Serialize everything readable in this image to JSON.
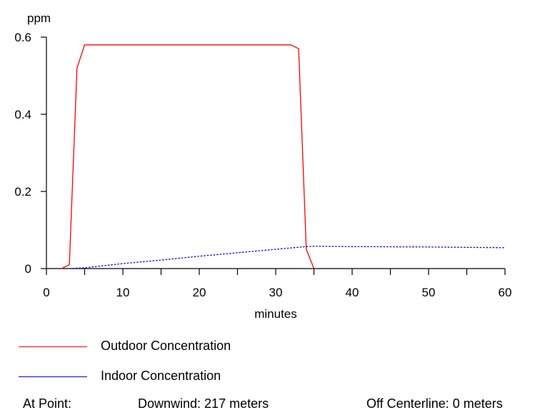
{
  "chart_data": {
    "type": "line",
    "ylabel": "ppm",
    "xlabel": "minutes",
    "xlim": [
      0,
      60
    ],
    "ylim": [
      0,
      0.6
    ],
    "x_ticks": [
      0,
      10,
      20,
      30,
      40,
      50,
      60
    ],
    "y_ticks": [
      0,
      0.2,
      0.4,
      0.6
    ],
    "y_tick_labels": [
      "0",
      "0.2",
      "0.4",
      "0.6"
    ],
    "grid": false,
    "legend_placement": "bottom",
    "series": [
      {
        "name": "Outdoor Concentration",
        "color": "#ff0000",
        "style": "solid",
        "points": [
          [
            2,
            0
          ],
          [
            3,
            0.01
          ],
          [
            4,
            0.52
          ],
          [
            5,
            0.58
          ],
          [
            32,
            0.58
          ],
          [
            33,
            0.57
          ],
          [
            34,
            0.05
          ],
          [
            35,
            0
          ]
        ]
      },
      {
        "name": "Indoor Concentration",
        "color": "#0000ff",
        "style": "dotted",
        "points": [
          [
            3,
            0
          ],
          [
            5,
            0.002
          ],
          [
            10,
            0.013
          ],
          [
            15,
            0.022
          ],
          [
            20,
            0.032
          ],
          [
            25,
            0.041
          ],
          [
            30,
            0.05
          ],
          [
            34,
            0.057
          ],
          [
            35,
            0.058
          ],
          [
            40,
            0.057
          ],
          [
            50,
            0.056
          ],
          [
            60,
            0.054
          ]
        ]
      }
    ]
  },
  "footer": {
    "at_point": "At Point:",
    "downwind": "Downwind:  217 meters",
    "off_centerline": "Off Centerline:   0 meters"
  }
}
